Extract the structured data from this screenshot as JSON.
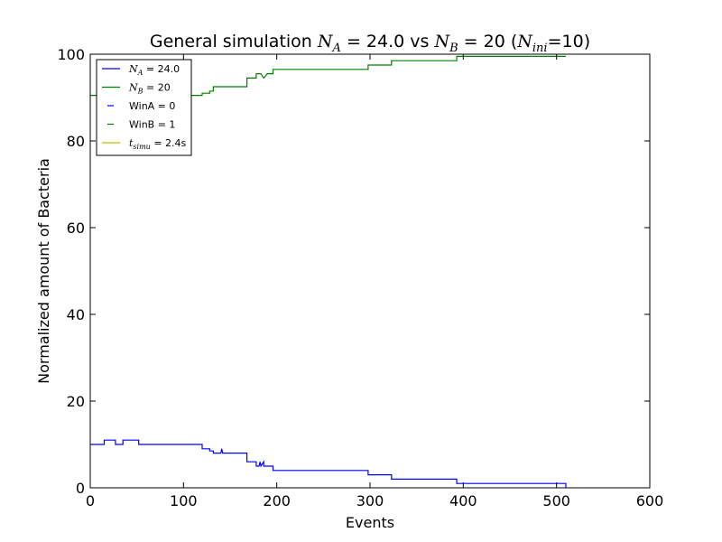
{
  "chart_data": {
    "type": "line",
    "title_parts": {
      "prefix": "General simulation ",
      "na_sym": "N",
      "na_sub": "A",
      "na_val": " = 24.0 vs ",
      "nb_sym": "N",
      "nb_sub": "B",
      "nb_val": " = 20 (",
      "ni_sym": "N",
      "ni_sub": "ini",
      "ni_val": "=10)"
    },
    "xlabel": "Events",
    "ylabel": "Normalized amount of Bacteria",
    "xlim": [
      0,
      600
    ],
    "ylim": [
      0,
      100
    ],
    "xticks": [
      0,
      100,
      200,
      300,
      400,
      500,
      600
    ],
    "yticks": [
      0,
      20,
      40,
      60,
      80,
      100
    ],
    "grid": false,
    "legend_position": "top-left",
    "legend": [
      {
        "sym": "N",
        "sub": "A",
        "rest": " = 24.0",
        "color": "#0000ff",
        "style": "solid"
      },
      {
        "sym": "N",
        "sub": "B",
        "rest": " = 20",
        "color": "#008000",
        "style": "solid"
      },
      {
        "text": "WinA = 0",
        "color": "#0000ff",
        "style": "dashed"
      },
      {
        "text": "WinB = 1",
        "color": "#008000",
        "style": "dashed"
      },
      {
        "sym": "t",
        "sub": "simu",
        "rest": " = 2.4s",
        "color": "#bfbf00",
        "style": "solid"
      }
    ],
    "series": [
      {
        "color": "#0000ff",
        "x": [
          0,
          15,
          15,
          27,
          27,
          35,
          35,
          52,
          52,
          120,
          120,
          128,
          128,
          132,
          132,
          140,
          140,
          141,
          142,
          143,
          143,
          168,
          168,
          178,
          178,
          181,
          182,
          183,
          183,
          186,
          186,
          190,
          190,
          196,
          196,
          298,
          298,
          323,
          323,
          393,
          393,
          510,
          510
        ],
        "y": [
          10,
          10,
          11,
          11,
          10,
          10,
          11,
          11,
          10,
          10,
          9,
          9,
          8.5,
          8.5,
          8,
          8,
          8,
          9,
          8,
          8,
          8,
          8,
          6,
          6,
          5,
          5,
          6,
          5,
          5,
          6,
          5,
          5,
          5,
          5,
          4,
          4,
          3,
          3,
          2,
          2,
          1,
          1,
          0
        ]
      },
      {
        "color": "#008000",
        "x": [
          0,
          10,
          10,
          20,
          20,
          40,
          40,
          80,
          80,
          120,
          120,
          128,
          128,
          132,
          132,
          168,
          168,
          178,
          178,
          183,
          186,
          186,
          190,
          196,
          196,
          298,
          298,
          323,
          323,
          393,
          393,
          510
        ],
        "y": [
          90.5,
          90.5,
          91,
          91,
          90.5,
          90.5,
          90.5,
          90.5,
          90.5,
          90.5,
          91,
          91,
          91.5,
          91.5,
          92.5,
          92.5,
          94.5,
          94.5,
          95.5,
          95.5,
          94.5,
          94.5,
          95.5,
          95.5,
          96.5,
          96.5,
          97.5,
          97.5,
          98.5,
          98.5,
          99.5,
          99.5
        ]
      }
    ]
  }
}
